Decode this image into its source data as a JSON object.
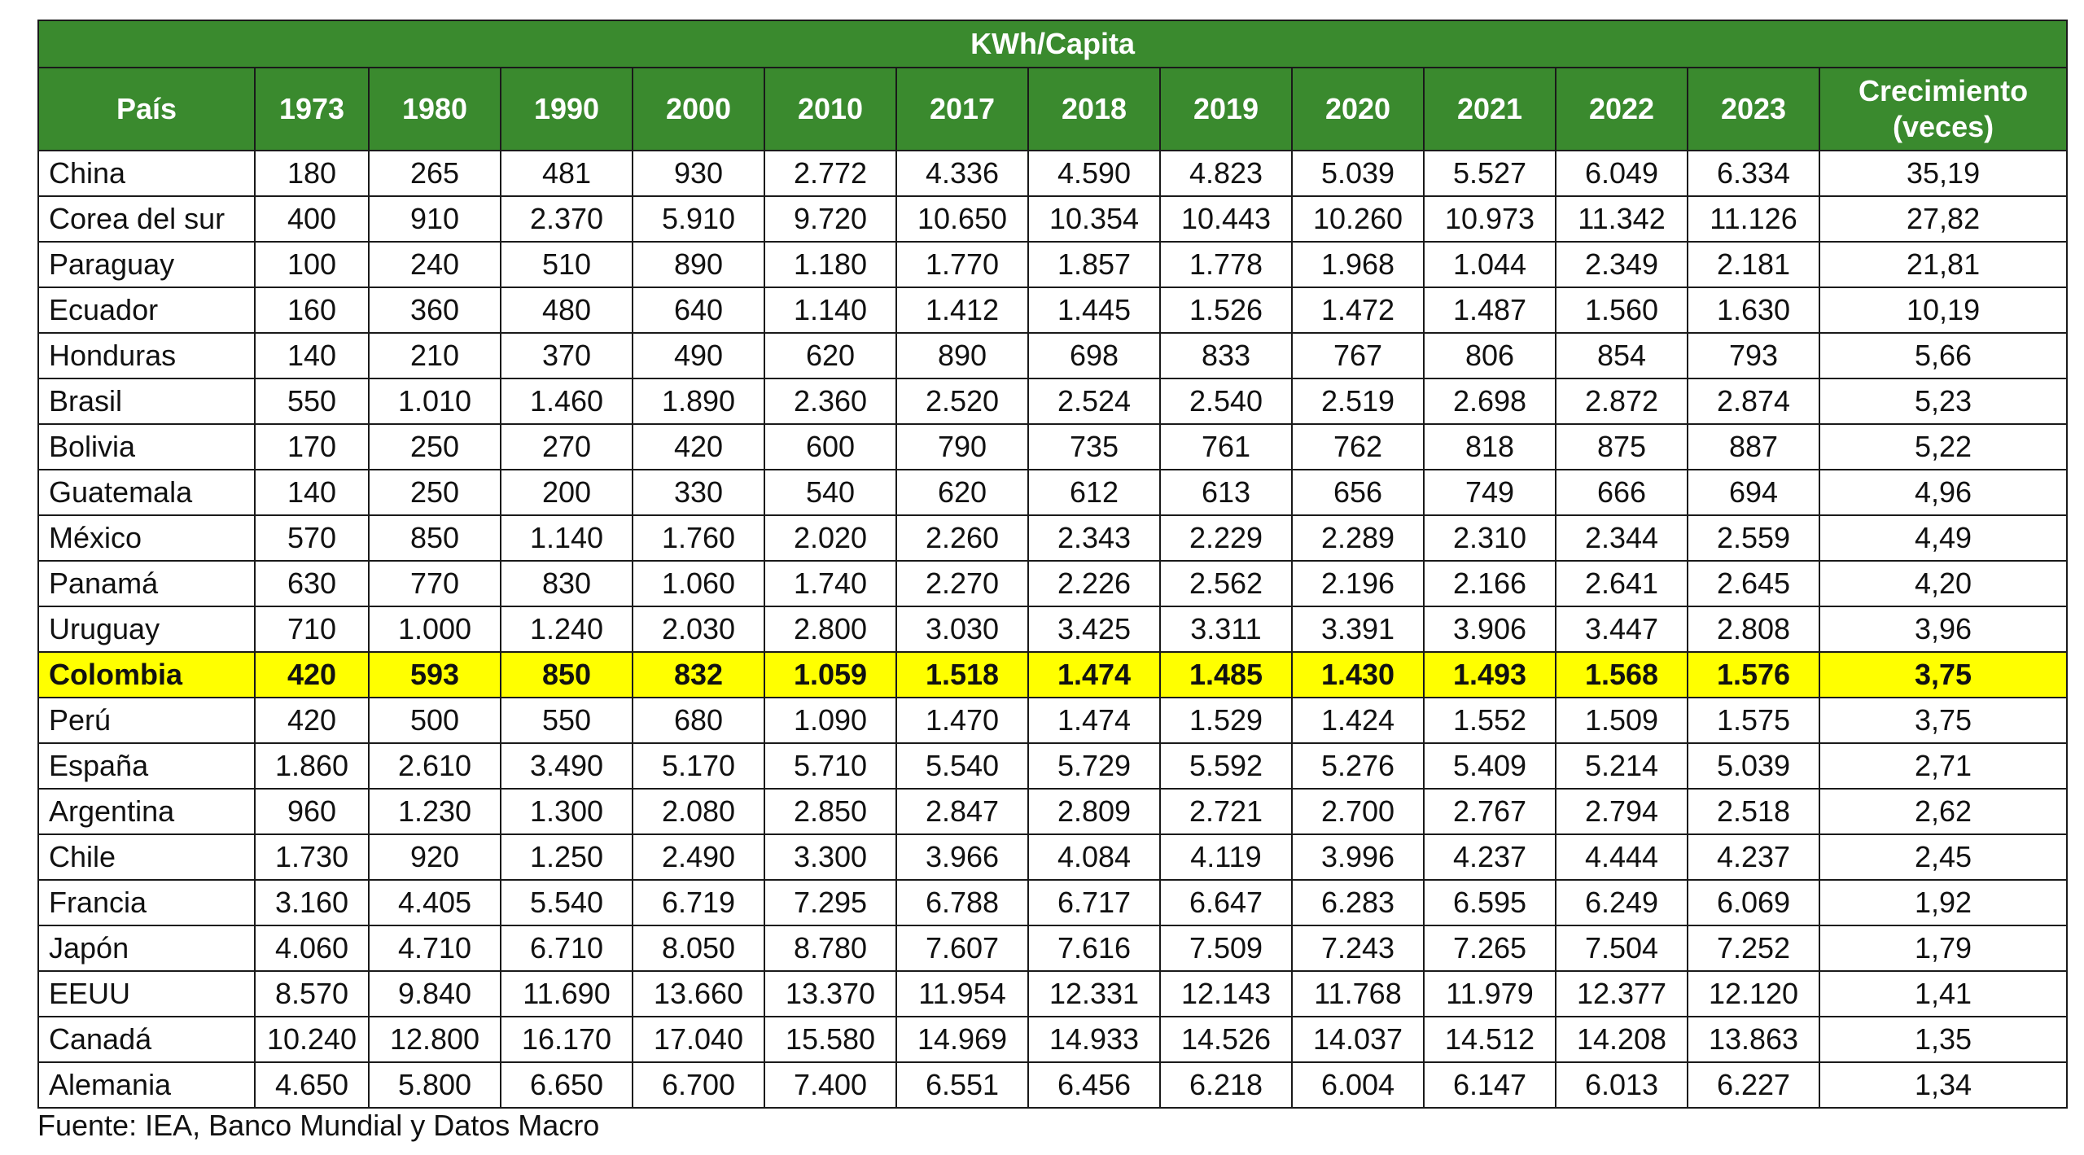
{
  "chart_data": {
    "type": "table",
    "title": "KWh/Capita",
    "columns": [
      "País",
      "1973",
      "1980",
      "1990",
      "2000",
      "2010",
      "2017",
      "2018",
      "2019",
      "2020",
      "2021",
      "2022",
      "2023",
      "Crecimiento (veces)"
    ],
    "rows": [
      [
        "China",
        "180",
        "265",
        "481",
        "930",
        "2.772",
        "4.336",
        "4.590",
        "4.823",
        "5.039",
        "5.527",
        "6.049",
        "6.334",
        "35,19"
      ],
      [
        "Corea del sur",
        "400",
        "910",
        "2.370",
        "5.910",
        "9.720",
        "10.650",
        "10.354",
        "10.443",
        "10.260",
        "10.973",
        "11.342",
        "11.126",
        "27,82"
      ],
      [
        "Paraguay",
        "100",
        "240",
        "510",
        "890",
        "1.180",
        "1.770",
        "1.857",
        "1.778",
        "1.968",
        "1.044",
        "2.349",
        "2.181",
        "21,81"
      ],
      [
        "Ecuador",
        "160",
        "360",
        "480",
        "640",
        "1.140",
        "1.412",
        "1.445",
        "1.526",
        "1.472",
        "1.487",
        "1.560",
        "1.630",
        "10,19"
      ],
      [
        "Honduras",
        "140",
        "210",
        "370",
        "490",
        "620",
        "890",
        "698",
        "833",
        "767",
        "806",
        "854",
        "793",
        "5,66"
      ],
      [
        "Brasil",
        "550",
        "1.010",
        "1.460",
        "1.890",
        "2.360",
        "2.520",
        "2.524",
        "2.540",
        "2.519",
        "2.698",
        "2.872",
        "2.874",
        "5,23"
      ],
      [
        "Bolivia",
        "170",
        "250",
        "270",
        "420",
        "600",
        "790",
        "735",
        "761",
        "762",
        "818",
        "875",
        "887",
        "5,22"
      ],
      [
        "Guatemala",
        "140",
        "250",
        "200",
        "330",
        "540",
        "620",
        "612",
        "613",
        "656",
        "749",
        "666",
        "694",
        "4,96"
      ],
      [
        "México",
        "570",
        "850",
        "1.140",
        "1.760",
        "2.020",
        "2.260",
        "2.343",
        "2.229",
        "2.289",
        "2.310",
        "2.344",
        "2.559",
        "4,49"
      ],
      [
        "Panamá",
        "630",
        "770",
        "830",
        "1.060",
        "1.740",
        "2.270",
        "2.226",
        "2.562",
        "2.196",
        "2.166",
        "2.641",
        "2.645",
        "4,20"
      ],
      [
        "Uruguay",
        "710",
        "1.000",
        "1.240",
        "2.030",
        "2.800",
        "3.030",
        "3.425",
        "3.311",
        "3.391",
        "3.906",
        "3.447",
        "2.808",
        "3,96"
      ],
      [
        "Colombia",
        "420",
        "593",
        "850",
        "832",
        "1.059",
        "1.518",
        "1.474",
        "1.485",
        "1.430",
        "1.493",
        "1.568",
        "1.576",
        "3,75"
      ],
      [
        "Perú",
        "420",
        "500",
        "550",
        "680",
        "1.090",
        "1.470",
        "1.474",
        "1.529",
        "1.424",
        "1.552",
        "1.509",
        "1.575",
        "3,75"
      ],
      [
        "España",
        "1.860",
        "2.610",
        "3.490",
        "5.170",
        "5.710",
        "5.540",
        "5.729",
        "5.592",
        "5.276",
        "5.409",
        "5.214",
        "5.039",
        "2,71"
      ],
      [
        "Argentina",
        "960",
        "1.230",
        "1.300",
        "2.080",
        "2.850",
        "2.847",
        "2.809",
        "2.721",
        "2.700",
        "2.767",
        "2.794",
        "2.518",
        "2,62"
      ],
      [
        "Chile",
        "1.730",
        "920",
        "1.250",
        "2.490",
        "3.300",
        "3.966",
        "4.084",
        "4.119",
        "3.996",
        "4.237",
        "4.444",
        "4.237",
        "2,45"
      ],
      [
        "Francia",
        "3.160",
        "4.405",
        "5.540",
        "6.719",
        "7.295",
        "6.788",
        "6.717",
        "6.647",
        "6.283",
        "6.595",
        "6.249",
        "6.069",
        "1,92"
      ],
      [
        "Japón",
        "4.060",
        "4.710",
        "6.710",
        "8.050",
        "8.780",
        "7.607",
        "7.616",
        "7.509",
        "7.243",
        "7.265",
        "7.504",
        "7.252",
        "1,79"
      ],
      [
        "EEUU",
        "8.570",
        "9.840",
        "11.690",
        "13.660",
        "13.370",
        "11.954",
        "12.331",
        "12.143",
        "11.768",
        "11.979",
        "12.377",
        "12.120",
        "1,41"
      ],
      [
        "Canadá",
        "10.240",
        "12.800",
        "16.170",
        "17.040",
        "15.580",
        "14.969",
        "14.933",
        "14.526",
        "14.037",
        "14.512",
        "14.208",
        "13.863",
        "1,35"
      ],
      [
        "Alemania",
        "4.650",
        "5.800",
        "6.650",
        "6.700",
        "7.400",
        "6.551",
        "6.456",
        "6.218",
        "6.004",
        "6.147",
        "6.013",
        "6.227",
        "1,34"
      ]
    ],
    "highlight_row": "Colombia",
    "header_color": "#3a8a2e",
    "highlight_color": "#ffff00",
    "source": "Fuente: IEA, Banco Mundial y Datos Macro"
  }
}
